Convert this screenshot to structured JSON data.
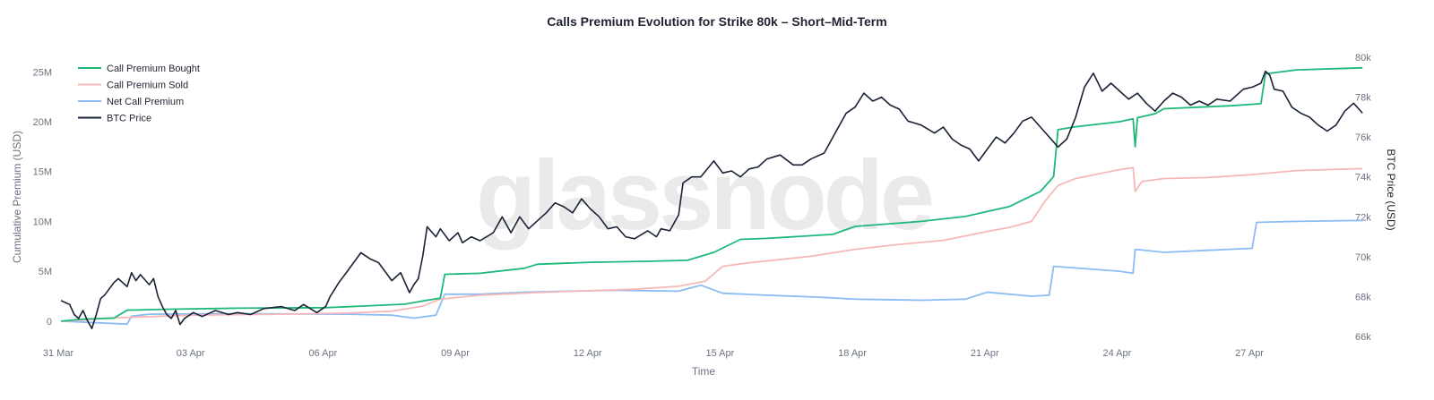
{
  "chart_data": {
    "type": "line",
    "title": "Calls Premium Evolution for Strike 80k – Short–Mid-Term",
    "xlabel": "Time",
    "ylabel_left": "Cumulative Premium (USD)",
    "ylabel_right": "BTC Price (USD)",
    "watermark": "glassnode",
    "x_ticks": [
      "31 Mar",
      "03 Apr",
      "06 Apr",
      "09 Apr",
      "12 Apr",
      "15 Apr",
      "18 Apr",
      "21 Apr",
      "24 Apr",
      "27 Apr"
    ],
    "x_range_days": [
      0,
      29.7
    ],
    "y_left_ticks": [
      "0",
      "5M",
      "10M",
      "15M",
      "20M",
      "25M"
    ],
    "y_left_range": [
      -1000000,
      27000000
    ],
    "y_right_ticks": [
      "66k",
      "68k",
      "70k",
      "72k",
      "74k",
      "76k",
      "78k",
      "80k"
    ],
    "y_right_range": [
      66000,
      80000
    ],
    "legend": {
      "placement": "top-left"
    },
    "grid": false,
    "series": [
      {
        "name": "Call Premium Bought",
        "axis": "left",
        "color": "#1db87a",
        "points": [
          [
            0,
            0
          ],
          [
            0.5,
            200000
          ],
          [
            1.2,
            300000
          ],
          [
            1.5,
            1100000
          ],
          [
            2.5,
            1200000
          ],
          [
            4,
            1300000
          ],
          [
            6,
            1350000
          ],
          [
            6.8,
            1500000
          ],
          [
            7.8,
            1700000
          ],
          [
            8.3,
            2100000
          ],
          [
            8.6,
            2300000
          ],
          [
            8.7,
            4700000
          ],
          [
            9.5,
            4800000
          ],
          [
            10.5,
            5300000
          ],
          [
            10.8,
            5700000
          ],
          [
            12,
            5900000
          ],
          [
            13.3,
            6000000
          ],
          [
            14.2,
            6100000
          ],
          [
            14.8,
            6900000
          ],
          [
            15.4,
            8200000
          ],
          [
            16,
            8300000
          ],
          [
            17.5,
            8700000
          ],
          [
            18,
            9500000
          ],
          [
            19.5,
            10000000
          ],
          [
            20.5,
            10500000
          ],
          [
            21.5,
            11500000
          ],
          [
            22.2,
            13000000
          ],
          [
            22.5,
            14500000
          ],
          [
            22.6,
            19200000
          ],
          [
            23,
            19500000
          ],
          [
            24,
            20000000
          ],
          [
            24.3,
            20300000
          ],
          [
            24.35,
            17500000
          ],
          [
            24.4,
            20400000
          ],
          [
            24.8,
            20800000
          ],
          [
            25,
            21300000
          ],
          [
            26,
            21500000
          ],
          [
            26.5,
            21600000
          ],
          [
            27.2,
            21800000
          ],
          [
            27.3,
            24800000
          ],
          [
            28,
            25200000
          ],
          [
            29.5,
            25400000
          ]
        ]
      },
      {
        "name": "Call Premium Sold",
        "axis": "left",
        "color": "#f7b8b8",
        "points": [
          [
            0,
            0
          ],
          [
            0.5,
            100000
          ],
          [
            1,
            300000
          ],
          [
            3,
            600000
          ],
          [
            5,
            700000
          ],
          [
            6.5,
            800000
          ],
          [
            7.5,
            1000000
          ],
          [
            8.2,
            1500000
          ],
          [
            8.6,
            2200000
          ],
          [
            9.5,
            2600000
          ],
          [
            11,
            2900000
          ],
          [
            13,
            3200000
          ],
          [
            14,
            3500000
          ],
          [
            14.6,
            4000000
          ],
          [
            15,
            5500000
          ],
          [
            15.5,
            5800000
          ],
          [
            17,
            6500000
          ],
          [
            18,
            7200000
          ],
          [
            19,
            7700000
          ],
          [
            20,
            8100000
          ],
          [
            21,
            9000000
          ],
          [
            21.5,
            9400000
          ],
          [
            22,
            10000000
          ],
          [
            22.3,
            12000000
          ],
          [
            22.6,
            13600000
          ],
          [
            23,
            14300000
          ],
          [
            24,
            15200000
          ],
          [
            24.3,
            15400000
          ],
          [
            24.35,
            13000000
          ],
          [
            24.5,
            14000000
          ],
          [
            25,
            14300000
          ],
          [
            26,
            14400000
          ],
          [
            27,
            14700000
          ],
          [
            28,
            15100000
          ],
          [
            29.5,
            15300000
          ]
        ]
      },
      {
        "name": "Net Call Premium",
        "axis": "left",
        "color": "#8bbcf3",
        "points": [
          [
            0,
            0
          ],
          [
            1.5,
            -300000
          ],
          [
            1.6,
            500000
          ],
          [
            2,
            700000
          ],
          [
            4,
            750000
          ],
          [
            6.5,
            700000
          ],
          [
            7.5,
            600000
          ],
          [
            8,
            300000
          ],
          [
            8.5,
            600000
          ],
          [
            8.7,
            2700000
          ],
          [
            9.5,
            2700000
          ],
          [
            10.5,
            2900000
          ],
          [
            11.5,
            3000000
          ],
          [
            12.5,
            3100000
          ],
          [
            14,
            3000000
          ],
          [
            14.5,
            3600000
          ],
          [
            15,
            2800000
          ],
          [
            16,
            2600000
          ],
          [
            17.2,
            2400000
          ],
          [
            18,
            2200000
          ],
          [
            19.5,
            2100000
          ],
          [
            20.5,
            2200000
          ],
          [
            21,
            2900000
          ],
          [
            21.5,
            2700000
          ],
          [
            22,
            2500000
          ],
          [
            22.4,
            2600000
          ],
          [
            22.5,
            5500000
          ],
          [
            24,
            5000000
          ],
          [
            24.3,
            4800000
          ],
          [
            24.35,
            7200000
          ],
          [
            25,
            6900000
          ],
          [
            26,
            7100000
          ],
          [
            27,
            7300000
          ],
          [
            27.1,
            9900000
          ],
          [
            28,
            10000000
          ],
          [
            29.5,
            10100000
          ]
        ]
      },
      {
        "name": "BTC Price",
        "axis": "right",
        "color": "#1a2236",
        "points": [
          [
            0,
            67800
          ],
          [
            0.2,
            67600
          ],
          [
            0.3,
            67100
          ],
          [
            0.4,
            66900
          ],
          [
            0.5,
            67300
          ],
          [
            0.6,
            66800
          ],
          [
            0.7,
            66400
          ],
          [
            0.8,
            67100
          ],
          [
            0.9,
            67900
          ],
          [
            1.0,
            68100
          ],
          [
            1.2,
            68700
          ],
          [
            1.3,
            68900
          ],
          [
            1.5,
            68500
          ],
          [
            1.6,
            69200
          ],
          [
            1.7,
            68800
          ],
          [
            1.8,
            69100
          ],
          [
            2.0,
            68600
          ],
          [
            2.1,
            68900
          ],
          [
            2.2,
            68000
          ],
          [
            2.3,
            67500
          ],
          [
            2.4,
            67100
          ],
          [
            2.5,
            66900
          ],
          [
            2.6,
            67300
          ],
          [
            2.7,
            66600
          ],
          [
            2.8,
            66900
          ],
          [
            3.0,
            67200
          ],
          [
            3.2,
            67000
          ],
          [
            3.5,
            67300
          ],
          [
            3.8,
            67100
          ],
          [
            4.0,
            67200
          ],
          [
            4.3,
            67100
          ],
          [
            4.6,
            67400
          ],
          [
            5.0,
            67500
          ],
          [
            5.3,
            67300
          ],
          [
            5.5,
            67600
          ],
          [
            5.8,
            67200
          ],
          [
            6.0,
            67500
          ],
          [
            6.1,
            68000
          ],
          [
            6.3,
            68700
          ],
          [
            6.5,
            69300
          ],
          [
            6.8,
            70200
          ],
          [
            7.0,
            69900
          ],
          [
            7.2,
            69700
          ],
          [
            7.5,
            68800
          ],
          [
            7.7,
            69200
          ],
          [
            7.9,
            68200
          ],
          [
            8.0,
            68600
          ],
          [
            8.1,
            68900
          ],
          [
            8.2,
            70000
          ],
          [
            8.3,
            71500
          ],
          [
            8.5,
            71000
          ],
          [
            8.6,
            71400
          ],
          [
            8.8,
            70800
          ],
          [
            9.0,
            71200
          ],
          [
            9.1,
            70700
          ],
          [
            9.3,
            71000
          ],
          [
            9.5,
            70800
          ],
          [
            9.8,
            71200
          ],
          [
            10.0,
            72000
          ],
          [
            10.2,
            71200
          ],
          [
            10.4,
            72000
          ],
          [
            10.6,
            71400
          ],
          [
            10.8,
            71800
          ],
          [
            11.0,
            72200
          ],
          [
            11.2,
            72700
          ],
          [
            11.4,
            72500
          ],
          [
            11.6,
            72200
          ],
          [
            11.8,
            72900
          ],
          [
            12.0,
            72400
          ],
          [
            12.2,
            72000
          ],
          [
            12.4,
            71400
          ],
          [
            12.6,
            71500
          ],
          [
            12.8,
            71000
          ],
          [
            13.0,
            70900
          ],
          [
            13.3,
            71300
          ],
          [
            13.5,
            71000
          ],
          [
            13.6,
            71400
          ],
          [
            13.8,
            71300
          ],
          [
            14.0,
            72100
          ],
          [
            14.1,
            73700
          ],
          [
            14.3,
            74000
          ],
          [
            14.5,
            74000
          ],
          [
            14.8,
            74800
          ],
          [
            15.0,
            74200
          ],
          [
            15.2,
            74300
          ],
          [
            15.4,
            74000
          ],
          [
            15.6,
            74400
          ],
          [
            15.8,
            74500
          ],
          [
            16.0,
            74900
          ],
          [
            16.3,
            75100
          ],
          [
            16.6,
            74600
          ],
          [
            16.8,
            74600
          ],
          [
            17.0,
            74900
          ],
          [
            17.3,
            75200
          ],
          [
            17.5,
            76000
          ],
          [
            17.8,
            77200
          ],
          [
            18.0,
            77500
          ],
          [
            18.2,
            78200
          ],
          [
            18.4,
            77800
          ],
          [
            18.6,
            78000
          ],
          [
            18.8,
            77600
          ],
          [
            19.0,
            77400
          ],
          [
            19.2,
            76800
          ],
          [
            19.5,
            76600
          ],
          [
            19.8,
            76200
          ],
          [
            20.0,
            76500
          ],
          [
            20.2,
            75900
          ],
          [
            20.4,
            75600
          ],
          [
            20.6,
            75400
          ],
          [
            20.8,
            74800
          ],
          [
            21.0,
            75400
          ],
          [
            21.2,
            76000
          ],
          [
            21.4,
            75700
          ],
          [
            21.6,
            76200
          ],
          [
            21.8,
            76800
          ],
          [
            22.0,
            77000
          ],
          [
            22.2,
            76500
          ],
          [
            22.4,
            76000
          ],
          [
            22.6,
            75500
          ],
          [
            22.8,
            75900
          ],
          [
            23.0,
            77000
          ],
          [
            23.2,
            78500
          ],
          [
            23.4,
            79200
          ],
          [
            23.6,
            78300
          ],
          [
            23.8,
            78700
          ],
          [
            24.0,
            78300
          ],
          [
            24.2,
            77900
          ],
          [
            24.4,
            78200
          ],
          [
            24.6,
            77700
          ],
          [
            24.8,
            77300
          ],
          [
            25.0,
            77800
          ],
          [
            25.2,
            78200
          ],
          [
            25.4,
            78000
          ],
          [
            25.6,
            77600
          ],
          [
            25.8,
            77800
          ],
          [
            26.0,
            77600
          ],
          [
            26.2,
            77900
          ],
          [
            26.5,
            77800
          ],
          [
            26.8,
            78400
          ],
          [
            27.0,
            78500
          ],
          [
            27.2,
            78700
          ],
          [
            27.3,
            79300
          ],
          [
            27.4,
            79100
          ],
          [
            27.5,
            78400
          ],
          [
            27.7,
            78300
          ],
          [
            27.9,
            77500
          ],
          [
            28.1,
            77200
          ],
          [
            28.3,
            77000
          ],
          [
            28.5,
            76600
          ],
          [
            28.7,
            76300
          ],
          [
            28.9,
            76600
          ],
          [
            29.1,
            77300
          ],
          [
            29.3,
            77700
          ],
          [
            29.5,
            77200
          ]
        ]
      }
    ]
  }
}
